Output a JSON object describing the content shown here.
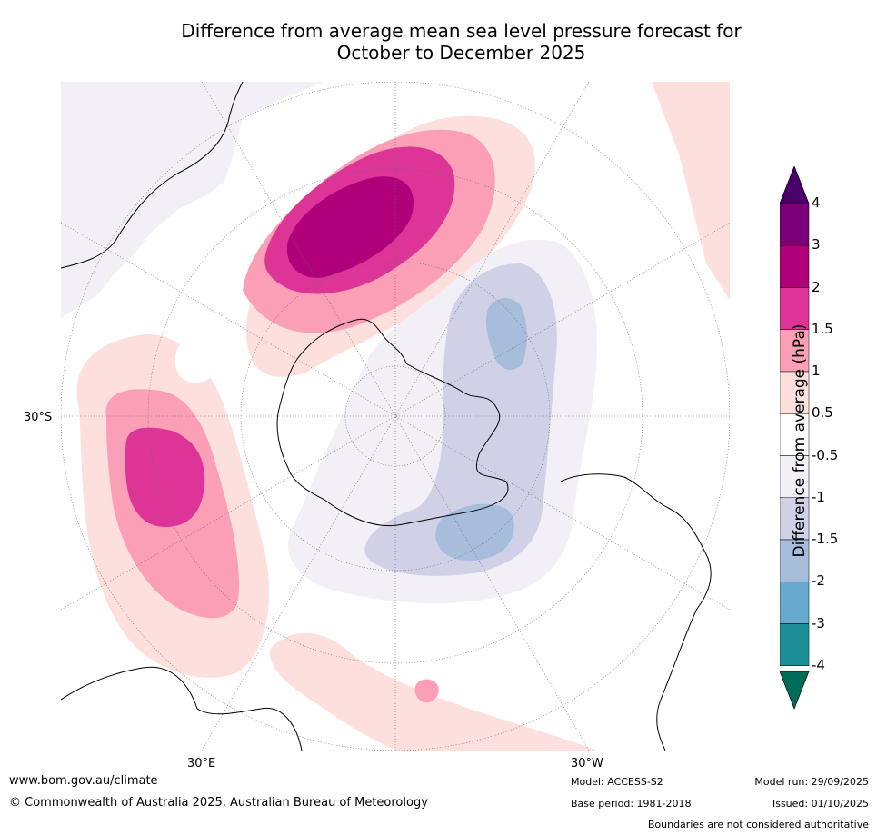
{
  "title": {
    "line1": "Difference from average mean sea level pressure forecast for",
    "line2": "October to December 2025"
  },
  "map": {
    "labels": {
      "lat_30s": "30°S",
      "lon_30e": "30°E",
      "lon_30w": "30°W"
    }
  },
  "colorbar": {
    "label": "Difference from average (hPa)",
    "ticks": [
      "4",
      "3",
      "2",
      "1.5",
      "1",
      "0.5",
      "-0.5",
      "-1",
      "-1.5",
      "-2",
      "-3",
      "-4"
    ],
    "colors": [
      "#7b0078",
      "#b0007a",
      "#dd3497",
      "#fa9fb5",
      "#fde0dd",
      "#ffffff",
      "#f3eff6",
      "#d0d1e6",
      "#a6bddb",
      "#67a9cf",
      "#1c9099",
      "#016c59"
    ],
    "over_color": "#49006a",
    "under_color": "#016c59"
  },
  "footer": {
    "website": "www.bom.gov.au/climate",
    "copyright": "© Commonwealth of Australia 2025, Australian Bureau of Meteorology",
    "model": "Model: ACCESS-S2",
    "base_period": "Base period: 1981-2018",
    "model_run": "Model run: 29/09/2025",
    "issued": "Issued: 01/10/2025",
    "disclaimer": "Boundaries are not considered authoritative"
  }
}
